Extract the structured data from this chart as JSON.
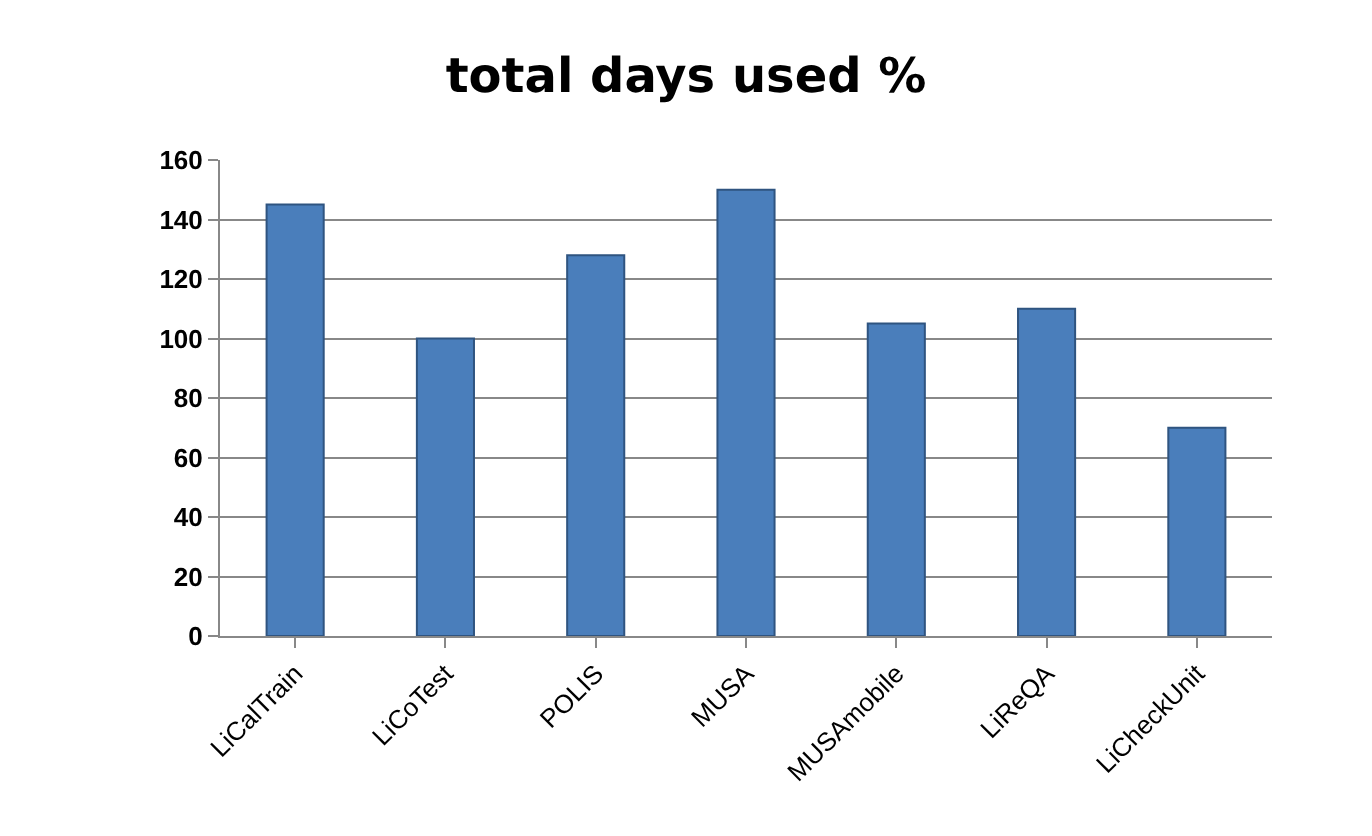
{
  "chart_data": {
    "type": "bar",
    "title": "total days used %",
    "categories": [
      "LiCalTrain",
      "LiCoTest",
      "POLIS",
      "MUSA",
      "MUSAmobile",
      "LiReQA",
      "LiCheckUnit"
    ],
    "values": [
      145,
      100,
      128,
      150,
      105,
      110,
      70
    ],
    "color": "#4a7ebb",
    "ylim": [
      0,
      160
    ],
    "yticks": [
      0,
      20,
      40,
      60,
      80,
      100,
      120,
      140,
      160
    ],
    "grid": "y"
  }
}
